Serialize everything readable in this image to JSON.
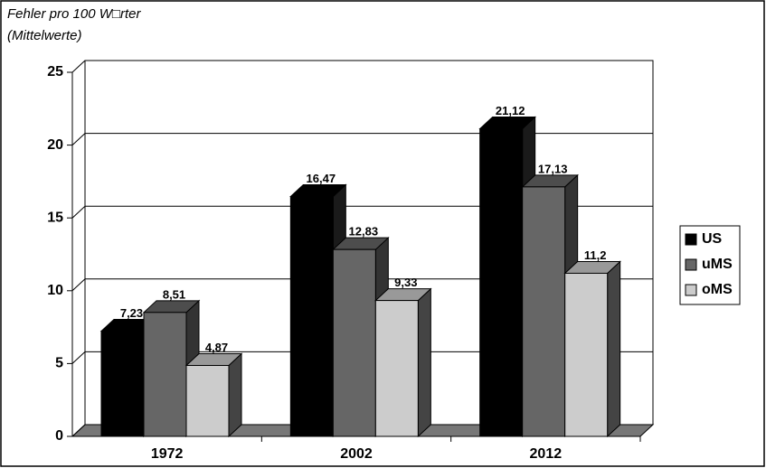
{
  "chart_data": {
    "type": "bar3d",
    "title": "Fehler pro 100 W□rter",
    "subtitle": "(Mittelwerte)",
    "categories": [
      "1972",
      "2002",
      "2012"
    ],
    "series": [
      {
        "name": "US",
        "color": "#000000",
        "values": [
          7.23,
          16.47,
          21.12
        ],
        "value_labels": [
          "7,23",
          "16,47",
          "21,12"
        ]
      },
      {
        "name": "uMS",
        "color": "#666666",
        "values": [
          8.51,
          12.83,
          17.13
        ],
        "value_labels": [
          "8,51",
          "12,83",
          "17,13"
        ]
      },
      {
        "name": "oMS",
        "color": "#cccccc",
        "values": [
          4.87,
          9.33,
          11.2
        ],
        "value_labels": [
          "4,87",
          "9,33",
          "11,2"
        ]
      }
    ],
    "ylim": [
      0,
      25
    ],
    "yticks": [
      0,
      5,
      10,
      15,
      20,
      25
    ],
    "grid": true,
    "legend": "right"
  }
}
